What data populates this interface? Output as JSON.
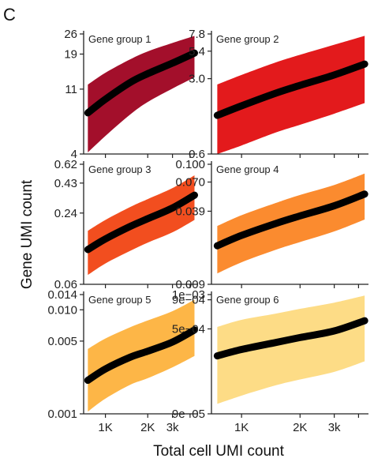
{
  "figure": {
    "panel_letter": "C",
    "xlabel": "Total cell UMI count",
    "ylabel": "Gene UMI count"
  },
  "chart_data": [
    {
      "type": "area",
      "title": "Gene group 1",
      "color": "#a30f2b",
      "x_scale": "log",
      "y_scale": "log",
      "xlim": [
        700,
        4500
      ],
      "ylim": [
        4,
        26
      ],
      "x_ticks": [
        1000,
        2000,
        3000
      ],
      "x_tick_labels": [
        "1K",
        "2K",
        "3k"
      ],
      "y_ticks": [
        4,
        11,
        19,
        26
      ],
      "y_tick_labels": [
        "4",
        "11",
        "19",
        "26"
      ],
      "series": [
        {
          "x": [
            750,
            1000,
            1500,
            2000,
            3000,
            4300
          ],
          "y": [
            7.6,
            9.4,
            12.2,
            14.0,
            16.5,
            19.3
          ],
          "lower": [
            4.1,
            5.3,
            7.4,
            9.0,
            11.1,
            13.2
          ],
          "upper": [
            11.8,
            14.2,
            17.5,
            19.8,
            22.6,
            25.2
          ]
        }
      ]
    },
    {
      "type": "area",
      "title": "Gene group 2",
      "color": "#e31a1c",
      "x_scale": "log",
      "y_scale": "log",
      "xlim": [
        700,
        4500
      ],
      "ylim": [
        0.6,
        7.8
      ],
      "x_ticks": [
        1000,
        2000,
        3000
      ],
      "x_tick_labels": [
        "1K",
        "2K",
        "3k"
      ],
      "y_ticks": [
        0.6,
        3.0,
        5.4,
        7.8
      ],
      "y_tick_labels": [
        "0.6",
        "3.0",
        "5.4",
        "7.8"
      ],
      "series": [
        {
          "x": [
            750,
            1000,
            1500,
            2000,
            3000,
            4300
          ],
          "y": [
            1.37,
            1.68,
            2.2,
            2.6,
            3.25,
            4.1
          ],
          "lower": [
            0.6,
            0.72,
            0.95,
            1.12,
            1.42,
            1.78
          ],
          "upper": [
            2.65,
            3.25,
            4.25,
            5.0,
            6.2,
            7.5
          ]
        }
      ]
    },
    {
      "type": "area",
      "title": "Gene group 3",
      "color": "#f24e1f",
      "x_scale": "log",
      "y_scale": "log",
      "xlim": [
        700,
        4500
      ],
      "ylim": [
        0.06,
        0.62
      ],
      "x_ticks": [
        1000,
        2000,
        3000
      ],
      "x_tick_labels": [
        "1K",
        "2K",
        "3k"
      ],
      "y_ticks": [
        0.06,
        0.24,
        0.43,
        0.62
      ],
      "y_tick_labels": [
        "0.06",
        "0.24",
        "0.43",
        "0.62"
      ],
      "series": [
        {
          "x": [
            750,
            1000,
            1500,
            2000,
            3000,
            4300
          ],
          "y": [
            0.118,
            0.145,
            0.185,
            0.215,
            0.265,
            0.34
          ],
          "lower": [
            0.072,
            0.09,
            0.115,
            0.135,
            0.165,
            0.21
          ],
          "upper": [
            0.17,
            0.21,
            0.27,
            0.315,
            0.39,
            0.5
          ]
        }
      ]
    },
    {
      "type": "area",
      "title": "Gene group 4",
      "color": "#fb8b2f",
      "x_scale": "log",
      "y_scale": "log",
      "xlim": [
        700,
        4500
      ],
      "ylim": [
        0.009,
        0.1
      ],
      "x_ticks": [
        1000,
        2000,
        3000
      ],
      "x_tick_labels": [
        "1K",
        "2K",
        "3k"
      ],
      "y_ticks": [
        0.009,
        0.039,
        0.07,
        0.1
      ],
      "y_tick_labels": [
        "0.009",
        "0.039",
        "0.070",
        "0.100"
      ],
      "series": [
        {
          "x": [
            750,
            1000,
            1500,
            2000,
            3000,
            4300
          ],
          "y": [
            0.0195,
            0.024,
            0.0305,
            0.0355,
            0.0435,
            0.055
          ],
          "lower": [
            0.0112,
            0.014,
            0.018,
            0.021,
            0.026,
            0.033
          ],
          "upper": [
            0.029,
            0.036,
            0.046,
            0.054,
            0.066,
            0.083
          ]
        }
      ]
    },
    {
      "type": "area",
      "title": "Gene group 5",
      "color": "#fdb647",
      "x_scale": "log",
      "y_scale": "log",
      "xlim": [
        700,
        4500
      ],
      "ylim": [
        0.001,
        0.014
      ],
      "x_ticks": [
        1000,
        2000,
        3000
      ],
      "x_tick_labels": [
        "1K",
        "2K",
        "3k"
      ],
      "y_ticks": [
        0.001,
        0.005,
        0.01,
        0.014
      ],
      "y_tick_labels": [
        "0.001",
        "0.005",
        "0.010",
        "0.014"
      ],
      "series": [
        {
          "x": [
            750,
            1000,
            1500,
            2000,
            3000,
            4300
          ],
          "y": [
            0.0021,
            0.0027,
            0.0035,
            0.004,
            0.0049,
            0.0064
          ],
          "lower": [
            0.00105,
            0.0014,
            0.0019,
            0.0022,
            0.0028,
            0.0036
          ],
          "upper": [
            0.0042,
            0.0053,
            0.0068,
            0.0079,
            0.0097,
            0.0125
          ]
        }
      ]
    },
    {
      "type": "area",
      "title": "Gene group 6",
      "color": "#fddc86",
      "x_scale": "log",
      "y_scale": "log",
      "xlim": [
        700,
        4500
      ],
      "ylim": [
        9e-05,
        0.001
      ],
      "x_ticks": [
        1000,
        2000,
        3000
      ],
      "x_tick_labels": [
        "1K",
        "2K",
        "3k"
      ],
      "y_ticks": [
        9e-05,
        0.0005,
        0.0009,
        0.001
      ],
      "y_tick_labels": [
        "9e−05",
        "5e−04",
        "9e−04",
        "1e−03"
      ],
      "series": [
        {
          "x": [
            750,
            1000,
            1500,
            2000,
            3000,
            4300
          ],
          "y": [
            0.00029,
            0.00033,
            0.00038,
            0.00042,
            0.00048,
            0.00059
          ],
          "lower": [
            0.00011,
            0.00013,
            0.00016,
            0.00018,
            0.00021,
            0.00026
          ],
          "upper": [
            0.00052,
            0.0006,
            0.00068,
            0.00075,
            0.00085,
            0.00098
          ]
        }
      ]
    }
  ]
}
